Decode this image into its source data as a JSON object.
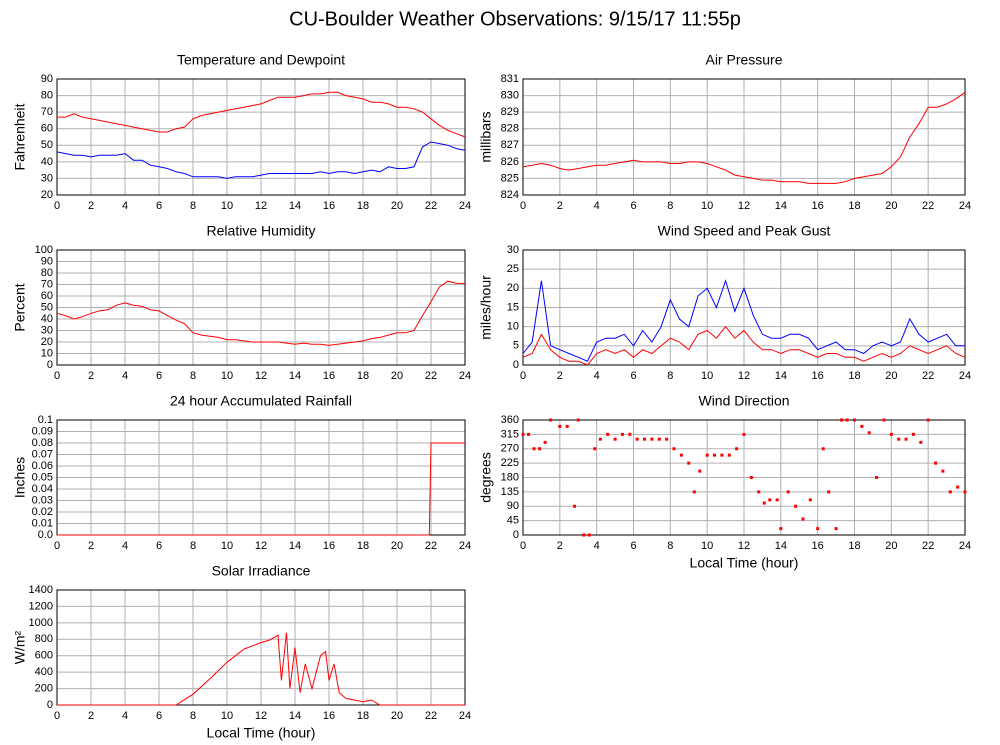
{
  "title": "CU-Boulder Weather Observations: 9/15/17 11:55p",
  "chart_data": [
    {
      "type": "line",
      "title": "Temperature and Dewpoint",
      "ylabel": "Fahrenheit",
      "x": [
        0,
        0.5,
        1,
        1.5,
        2,
        2.5,
        3,
        3.5,
        4,
        4.5,
        5,
        5.5,
        6,
        6.5,
        7,
        7.5,
        8,
        8.5,
        9,
        9.5,
        10,
        10.5,
        11,
        11.5,
        12,
        12.5,
        13,
        13.5,
        14,
        14.5,
        15,
        15.5,
        16,
        16.5,
        17,
        17.5,
        18,
        18.5,
        19,
        19.5,
        20,
        20.5,
        21,
        21.5,
        22,
        22.5,
        23,
        23.5,
        24
      ],
      "series": [
        {
          "color": "#ff0000",
          "values": [
            67,
            67,
            69,
            67,
            66,
            65,
            64,
            63,
            62,
            61,
            60,
            59,
            58,
            58,
            60,
            61,
            66,
            68,
            69,
            70,
            71,
            72,
            73,
            74,
            75,
            77,
            79,
            79,
            79,
            80,
            81,
            81,
            82,
            82,
            80,
            79,
            78,
            76,
            76,
            75,
            73,
            73,
            72,
            70,
            66,
            62,
            59,
            57,
            55
          ]
        },
        {
          "color": "#0000ff",
          "values": [
            46,
            45,
            44,
            44,
            43,
            44,
            44,
            44,
            45,
            41,
            41,
            38,
            37,
            36,
            34,
            33,
            31,
            31,
            31,
            31,
            30,
            31,
            31,
            31,
            32,
            33,
            33,
            33,
            33,
            33,
            33,
            34,
            33,
            34,
            34,
            33,
            34,
            35,
            34,
            37,
            36,
            36,
            37,
            49,
            52,
            51,
            50,
            48,
            47
          ]
        }
      ],
      "xlim": [
        0,
        24
      ],
      "xticks": [
        0,
        2,
        4,
        6,
        8,
        10,
        12,
        14,
        16,
        18,
        20,
        22,
        24
      ],
      "ylim": [
        20,
        90
      ],
      "yticks": [
        20,
        30,
        40,
        50,
        60,
        70,
        80,
        90
      ],
      "grid": true
    },
    {
      "type": "line",
      "title": "Air Pressure",
      "ylabel": "millibars",
      "x": [
        0,
        0.5,
        1,
        1.5,
        2,
        2.5,
        3,
        3.5,
        4,
        4.5,
        5,
        5.5,
        6,
        6.5,
        7,
        7.5,
        8,
        8.5,
        9,
        9.5,
        10,
        10.5,
        11,
        11.5,
        12,
        12.5,
        13,
        13.5,
        14,
        14.5,
        15,
        15.5,
        16,
        16.5,
        17,
        17.5,
        18,
        18.5,
        19,
        19.5,
        20,
        20.5,
        21,
        21.5,
        22,
        22.5,
        23,
        23.5,
        24
      ],
      "series": [
        {
          "color": "#ff0000",
          "values": [
            825.7,
            825.8,
            825.9,
            825.8,
            825.6,
            825.5,
            825.6,
            825.7,
            825.8,
            825.8,
            825.9,
            826.0,
            826.1,
            826.0,
            826.0,
            826.0,
            825.9,
            825.9,
            826.0,
            826.0,
            825.9,
            825.7,
            825.5,
            825.2,
            825.1,
            825.0,
            824.9,
            824.9,
            824.8,
            824.8,
            824.8,
            824.7,
            824.7,
            824.7,
            824.7,
            824.8,
            825.0,
            825.1,
            825.2,
            825.3,
            825.7,
            826.3,
            827.5,
            828.3,
            829.3,
            829.3,
            829.5,
            829.8,
            830.2
          ]
        }
      ],
      "xlim": [
        0,
        24
      ],
      "xticks": [
        0,
        2,
        4,
        6,
        8,
        10,
        12,
        14,
        16,
        18,
        20,
        22,
        24
      ],
      "ylim": [
        824,
        831
      ],
      "yticks": [
        824,
        825,
        826,
        827,
        828,
        829,
        830,
        831
      ],
      "grid": true
    },
    {
      "type": "line",
      "title": "Relative Humidity",
      "ylabel": "Percent",
      "x": [
        0,
        0.5,
        1,
        1.5,
        2,
        2.5,
        3,
        3.5,
        4,
        4.5,
        5,
        5.5,
        6,
        6.5,
        7,
        7.5,
        8,
        8.5,
        9,
        9.5,
        10,
        10.5,
        11,
        11.5,
        12,
        12.5,
        13,
        13.5,
        14,
        14.5,
        15,
        15.5,
        16,
        16.5,
        17,
        17.5,
        18,
        18.5,
        19,
        19.5,
        20,
        20.5,
        21,
        21.5,
        22,
        22.5,
        23,
        23.5,
        24
      ],
      "series": [
        {
          "color": "#ff0000",
          "values": [
            45,
            43,
            40,
            42,
            45,
            47,
            48,
            52,
            54,
            52,
            51,
            48,
            47,
            43,
            39,
            36,
            28,
            26,
            25,
            24,
            22,
            22,
            21,
            20,
            20,
            20,
            20,
            19,
            18,
            19,
            18,
            18,
            17,
            18,
            19,
            20,
            21,
            23,
            24,
            26,
            28,
            28,
            30,
            43,
            55,
            68,
            73,
            71,
            71
          ]
        }
      ],
      "xlim": [
        0,
        24
      ],
      "xticks": [
        0,
        2,
        4,
        6,
        8,
        10,
        12,
        14,
        16,
        18,
        20,
        22,
        24
      ],
      "ylim": [
        0,
        100
      ],
      "yticks": [
        0,
        10,
        20,
        30,
        40,
        50,
        60,
        70,
        80,
        90,
        100
      ],
      "grid": true
    },
    {
      "type": "line",
      "title": "Wind Speed and Peak Gust",
      "ylabel": "miles/hour",
      "x": [
        0,
        0.5,
        1,
        1.5,
        2,
        2.5,
        3,
        3.5,
        4,
        4.5,
        5,
        5.5,
        6,
        6.5,
        7,
        7.5,
        8,
        8.5,
        9,
        9.5,
        10,
        10.5,
        11,
        11.5,
        12,
        12.5,
        13,
        13.5,
        14,
        14.5,
        15,
        15.5,
        16,
        16.5,
        17,
        17.5,
        18,
        18.5,
        19,
        19.5,
        20,
        20.5,
        21,
        21.5,
        22,
        22.5,
        23,
        23.5,
        24
      ],
      "series": [
        {
          "color": "#0000ff",
          "values": [
            3,
            6,
            22,
            5,
            4,
            3,
            2,
            1,
            6,
            7,
            7,
            8,
            5,
            9,
            6,
            10,
            17,
            12,
            10,
            18,
            20,
            15,
            22,
            14,
            20,
            13,
            8,
            7,
            7,
            8,
            8,
            7,
            4,
            5,
            6,
            4,
            4,
            3,
            5,
            6,
            5,
            6,
            12,
            8,
            6,
            7,
            8,
            5,
            5
          ]
        },
        {
          "color": "#ff0000",
          "values": [
            2,
            3,
            8,
            4,
            2,
            1,
            1,
            0,
            3,
            4,
            3,
            4,
            2,
            4,
            3,
            5,
            7,
            6,
            4,
            8,
            9,
            7,
            10,
            7,
            9,
            6,
            4,
            4,
            3,
            4,
            4,
            3,
            2,
            3,
            3,
            2,
            2,
            1,
            2,
            3,
            2,
            3,
            5,
            4,
            3,
            4,
            5,
            3,
            2
          ]
        }
      ],
      "xlim": [
        0,
        24
      ],
      "xticks": [
        0,
        2,
        4,
        6,
        8,
        10,
        12,
        14,
        16,
        18,
        20,
        22,
        24
      ],
      "ylim": [
        0,
        30
      ],
      "yticks": [
        0,
        5,
        10,
        15,
        20,
        25,
        30
      ],
      "grid": true
    },
    {
      "type": "line",
      "title": "24 hour Accumulated Rainfall",
      "ylabel": "Inches",
      "x": [
        0,
        21.9,
        22,
        24
      ],
      "series": [
        {
          "color": "#ff0000",
          "values": [
            0,
            0,
            0.08,
            0.08
          ]
        }
      ],
      "xlim": [
        0,
        24
      ],
      "xticks": [
        0,
        2,
        4,
        6,
        8,
        10,
        12,
        14,
        16,
        18,
        20,
        22,
        24
      ],
      "ylim": [
        0,
        0.1
      ],
      "yticks": [
        {
          "value": 0,
          "label": "0.0"
        },
        0.01,
        0.02,
        0.03,
        0.04,
        0.05,
        0.06,
        0.07,
        0.08,
        0.09,
        0.1
      ],
      "grid": true
    },
    {
      "type": "scatter",
      "title": "Wind Direction",
      "ylabel": "degrees",
      "xlabel": "Local Time (hour)",
      "x": [
        0,
        0.3,
        0.6,
        0.9,
        1.2,
        1.5,
        2,
        2.4,
        2.8,
        3.0,
        3.3,
        3.6,
        3.9,
        4.2,
        4.6,
        5,
        5.4,
        5.8,
        6.2,
        6.6,
        7,
        7.4,
        7.8,
        8.2,
        8.6,
        9,
        9.3,
        9.6,
        10,
        10.4,
        10.8,
        11.2,
        11.6,
        12,
        12.4,
        12.8,
        13.1,
        13.4,
        13.8,
        14,
        14.4,
        14.8,
        15.2,
        15.6,
        16,
        16.3,
        16.6,
        17,
        17.3,
        17.6,
        18,
        18.4,
        18.8,
        19.2,
        19.6,
        20,
        20.4,
        20.8,
        21.2,
        21.6,
        22,
        22.4,
        22.8,
        23.2,
        23.6,
        24
      ],
      "series": [
        {
          "color": "#ff0000",
          "values": [
            315,
            315,
            270,
            270,
            290,
            360,
            340,
            340,
            90,
            360,
            0,
            0,
            270,
            300,
            315,
            300,
            315,
            315,
            300,
            300,
            300,
            300,
            300,
            270,
            250,
            225,
            135,
            200,
            250,
            250,
            250,
            250,
            270,
            315,
            180,
            135,
            100,
            110,
            110,
            20,
            135,
            90,
            50,
            110,
            20,
            270,
            135,
            20,
            360,
            360,
            360,
            340,
            320,
            180,
            360,
            315,
            300,
            300,
            315,
            290,
            360,
            225,
            200,
            135,
            150,
            135
          ]
        }
      ],
      "xlim": [
        0,
        24
      ],
      "xticks": [
        0,
        2,
        4,
        6,
        8,
        10,
        12,
        14,
        16,
        18,
        20,
        22,
        24
      ],
      "ylim": [
        0,
        360
      ],
      "yticks": [
        0,
        45,
        90,
        135,
        180,
        225,
        270,
        315,
        360
      ],
      "grid": true
    },
    {
      "type": "line",
      "title": "Solar Irradiance",
      "ylabel": "W/m²",
      "xlabel": "Local Time (hour)",
      "x": [
        0,
        7,
        8,
        9,
        10,
        11,
        12,
        12.5,
        13,
        13.2,
        13.5,
        13.7,
        14,
        14.3,
        14.6,
        15,
        15.5,
        15.8,
        16,
        16.3,
        16.6,
        17,
        18,
        18.5,
        19,
        24
      ],
      "series": [
        {
          "color": "#ff0000",
          "values": [
            0,
            0,
            130,
            320,
            520,
            680,
            760,
            790,
            850,
            300,
            880,
            200,
            700,
            150,
            500,
            200,
            600,
            650,
            300,
            500,
            150,
            80,
            40,
            60,
            0,
            0
          ]
        }
      ],
      "xlim": [
        0,
        24
      ],
      "xticks": [
        0,
        2,
        4,
        6,
        8,
        10,
        12,
        14,
        16,
        18,
        20,
        22,
        24
      ],
      "ylim": [
        0,
        1400
      ],
      "yticks": [
        0,
        200,
        400,
        600,
        800,
        1000,
        1200,
        1400
      ],
      "grid": true
    }
  ]
}
